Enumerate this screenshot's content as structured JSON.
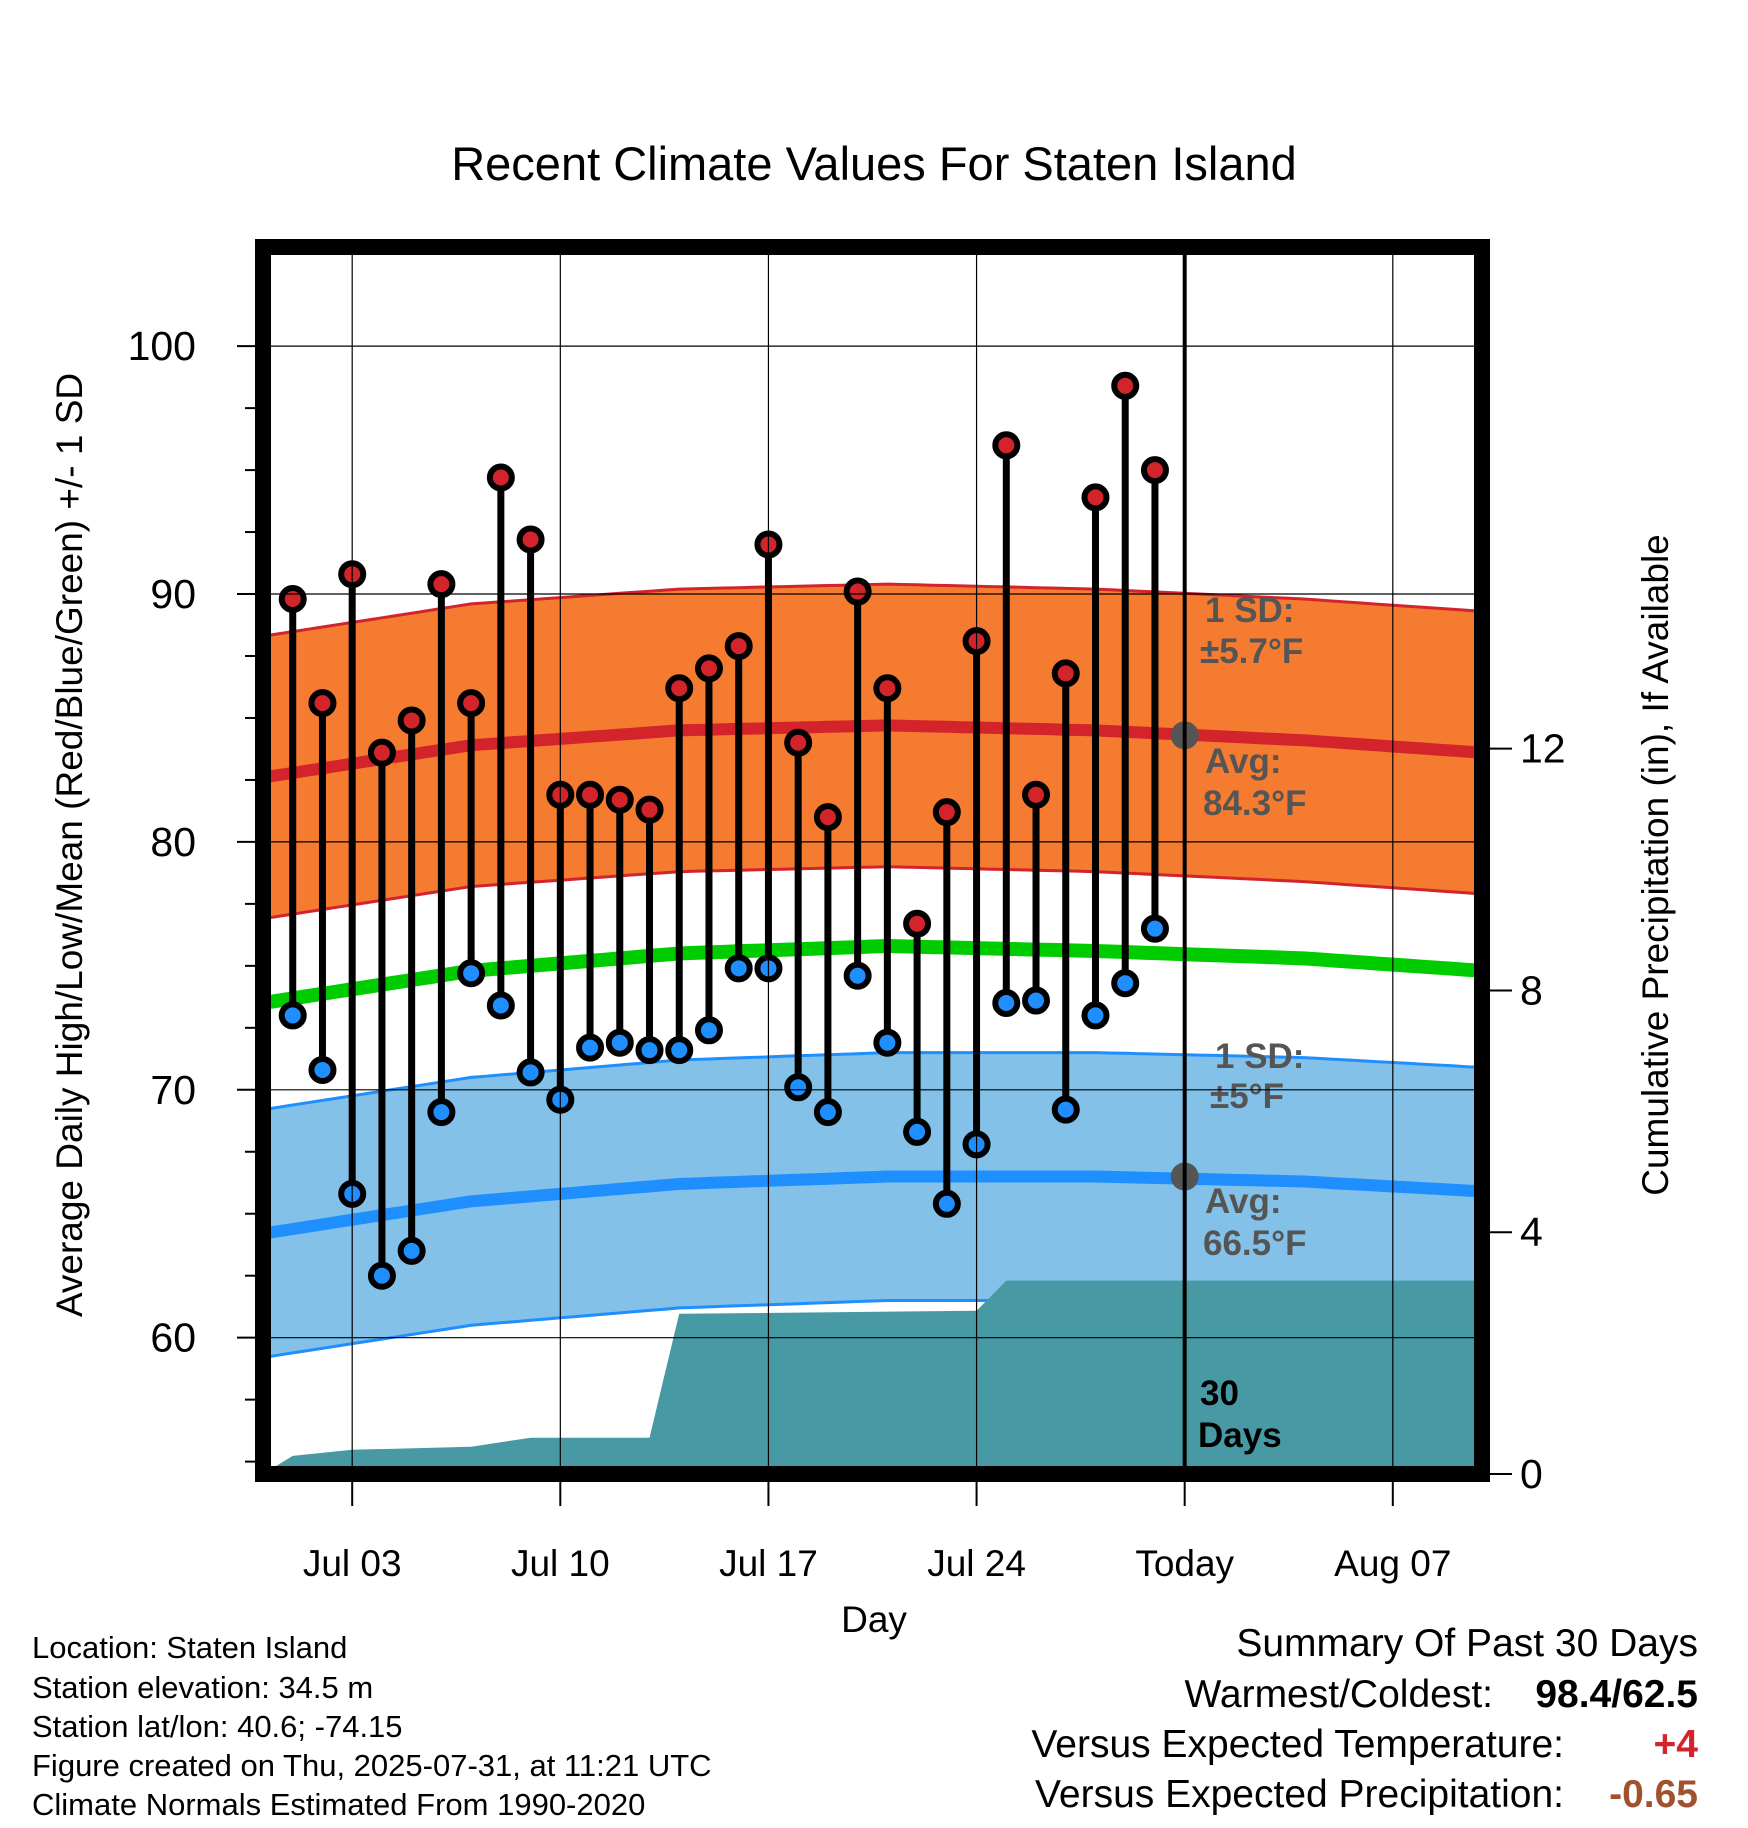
{
  "chart_data": {
    "type": "line",
    "title": "Recent Climate Values For Staten Island",
    "xlabel": "Day",
    "ylabel": "Average Daily High/Low/Mean (Red/Blue/Green) +/- 1 SD",
    "y2label": "Cumulative Precipitation (in), If Available",
    "ylim": [
      54.5,
      104
    ],
    "y2lim": [
      0,
      20.3
    ],
    "x_dates_start": "2025-06-30",
    "x_dates_end": "2025-08-10",
    "yticks": [
      "60",
      "70",
      "80",
      "90",
      "100"
    ],
    "y2ticks": [
      "0",
      "4",
      "8",
      "12"
    ],
    "xticks": [
      {
        "date": "2025-07-03",
        "label": "Jul 03"
      },
      {
        "date": "2025-07-10",
        "label": "Jul 10"
      },
      {
        "date": "2025-07-17",
        "label": "Jul 17"
      },
      {
        "date": "2025-07-24",
        "label": "Jul 24"
      },
      {
        "date": "2025-07-31",
        "label": "Today"
      },
      {
        "date": "2025-08-07",
        "label": "Aug 07"
      }
    ],
    "today": "2025-07-31",
    "daily_dates": [
      "2025-07-01",
      "2025-07-02",
      "2025-07-03",
      "2025-07-04",
      "2025-07-05",
      "2025-07-06",
      "2025-07-07",
      "2025-07-08",
      "2025-07-09",
      "2025-07-10",
      "2025-07-11",
      "2025-07-12",
      "2025-07-13",
      "2025-07-14",
      "2025-07-15",
      "2025-07-16",
      "2025-07-17",
      "2025-07-18",
      "2025-07-19",
      "2025-07-20",
      "2025-07-21",
      "2025-07-22",
      "2025-07-23",
      "2025-07-24",
      "2025-07-25",
      "2025-07-26",
      "2025-07-27",
      "2025-07-28",
      "2025-07-29",
      "2025-07-30"
    ],
    "daily_highs": [
      89.8,
      85.6,
      90.8,
      83.6,
      84.9,
      90.4,
      85.6,
      94.7,
      92.2,
      81.9,
      81.9,
      81.7,
      81.3,
      86.2,
      87.0,
      87.9,
      92.0,
      84.0,
      81.0,
      90.1,
      86.2,
      76.7,
      81.2,
      88.1,
      96.0,
      81.9,
      86.8,
      93.9,
      98.4,
      95.0
    ],
    "daily_lows": [
      73.0,
      70.8,
      65.8,
      62.5,
      63.5,
      69.1,
      74.7,
      73.4,
      70.7,
      69.6,
      71.7,
      71.9,
      71.6,
      71.6,
      72.4,
      74.9,
      74.9,
      70.1,
      69.1,
      74.6,
      71.9,
      68.3,
      65.4,
      67.8,
      73.5,
      73.6,
      69.2,
      73.0,
      74.3,
      76.5
    ],
    "normals": {
      "dates": [
        "2025-06-30",
        "2025-07-07",
        "2025-07-14",
        "2025-07-21",
        "2025-07-28",
        "2025-08-04",
        "2025-08-10"
      ],
      "avg_high": [
        82.6,
        83.9,
        84.5,
        84.7,
        84.5,
        84.1,
        83.6
      ],
      "avg_low": [
        64.2,
        65.5,
        66.2,
        66.5,
        66.5,
        66.3,
        65.9
      ],
      "avg_mean": [
        73.5,
        74.8,
        75.5,
        75.8,
        75.6,
        75.3,
        74.8
      ],
      "high_sd": 5.7,
      "low_sd": 5.0
    },
    "precip_cumulative": {
      "dates": [
        "2025-06-30",
        "2025-07-01",
        "2025-07-03",
        "2025-07-07",
        "2025-07-09",
        "2025-07-13",
        "2025-07-14",
        "2025-07-24",
        "2025-07-25",
        "2025-08-10"
      ],
      "values": [
        0.0,
        0.3,
        0.4,
        0.45,
        0.6,
        0.6,
        2.65,
        2.7,
        3.2,
        3.2
      ]
    },
    "annotations": {
      "high_sd_label": "1 SD:",
      "high_sd_value": "±5.7°F",
      "high_avg_label": "Avg:",
      "high_avg_value": "84.3°F",
      "low_sd_label": "1 SD:",
      "low_sd_value": "±5°F",
      "low_avg_label": "Avg:",
      "low_avg_value": "66.5°F",
      "days_number": "30",
      "days_word": "Days"
    },
    "today_high_avg": 84.3,
    "today_low_avg": 66.5,
    "colors": {
      "high_band": "#f47b30",
      "high_line": "#d3242b",
      "low_band": "#83c1e8",
      "low_line": "#1f8fff",
      "mean_line": "#00cc00",
      "precip": "#4799a4",
      "high_dot": "#d3242b",
      "low_dot": "#1f8fff",
      "annotation": "#555555"
    }
  },
  "info": {
    "location": "Location: Staten Island",
    "elevation": "Station elevation: 34.5 m",
    "latlon": "Station lat/lon: 40.6; -74.15",
    "created": "Figure created on Thu, 2025-07-31, at 11:21 UTC",
    "normals": "Climate Normals Estimated From 1990-2020"
  },
  "summary": {
    "title": "Summary Of Past 30 Days",
    "warmest_label": "Warmest/Coldest:",
    "warmest_value": "98.4/62.5",
    "temp_label": "Versus Expected Temperature:",
    "temp_value": "+4",
    "precip_label": "Versus Expected Precipitation:",
    "precip_value": "-0.65",
    "temp_color": "#d3242b",
    "precip_color": "#a0522d"
  }
}
